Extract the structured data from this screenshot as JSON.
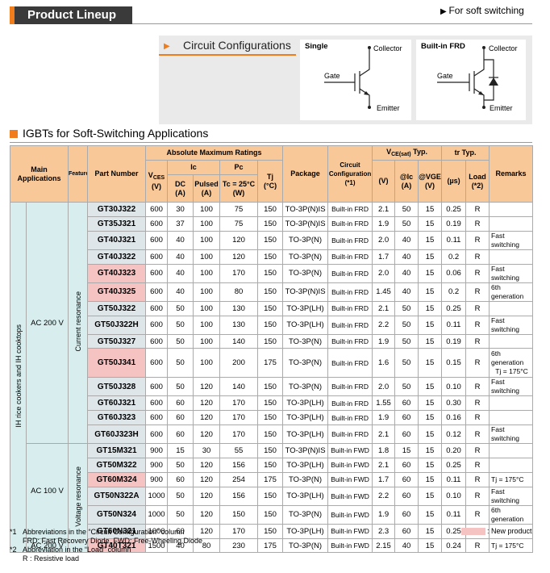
{
  "header": {
    "title": "Product Lineup",
    "note": "For soft switching"
  },
  "circuit": {
    "title": "Circuit Configurations",
    "single": {
      "label": "Single",
      "collector": "Collector",
      "gate": "Gate",
      "emitter": "Emitter"
    },
    "frd": {
      "label": "Built-in FRD",
      "collector": "Collector",
      "gate": "Gate",
      "emitter": "Emitter"
    }
  },
  "section_title": "IGBTs for Soft-Switching Applications",
  "table": {
    "header": {
      "main_applications": "Main Applications",
      "features": "Features",
      "part_number": "Part Number",
      "absolute_max": "Absolute Maximum Ratings",
      "vces": "V",
      "vces_sub": "CES",
      "vces_unit": "(V)",
      "ic": "Ic",
      "pc": "Pc",
      "tj": "Tj",
      "tj_unit": "(°C)",
      "dc": "DC",
      "dc_unit": "(A)",
      "pulsed": "Pulsed",
      "pulsed_unit": "(A)",
      "tc": "Tc = 25°C",
      "tc_unit": "(W)",
      "package": "Package",
      "config": "Circuit Configuration",
      "config_note": "(*1)",
      "vce": "V",
      "vce_sub": "CE(sat)",
      "vce_typ": "Typ.",
      "vce_unit": "(V)",
      "at_ic": "@Ic",
      "at_ic_unit": "(A)",
      "at_vge": "@VGE",
      "at_vge_unit": "(V)",
      "tr": "tr Typ.",
      "tr_unit": "(µs)",
      "load": "Load",
      "load_note": "(*2)",
      "remarks": "Remarks"
    },
    "main_application": "IH rice cookers and IH cooktops",
    "rows": [
      {
        "supply": "AC 200 V",
        "feature": "Current resonance",
        "cells": [
          "GT30J322",
          "600",
          "30",
          "100",
          "75",
          "150",
          "TO-3P(N)IS",
          "Built-in FRD",
          "2.1",
          "50",
          "15",
          "0.25",
          "R"
        ]
      },
      {
        "cells": [
          "GT35J321",
          "600",
          "37",
          "100",
          "75",
          "150",
          "TO-3P(N)IS",
          "Built-in FRD",
          "1.9",
          "50",
          "15",
          "0.19",
          "R"
        ]
      },
      {
        "cells": [
          "GT40J321",
          "600",
          "40",
          "100",
          "120",
          "150",
          "TO-3P(N)",
          "Built-in FRD",
          "2.0",
          "40",
          "15",
          "0.11",
          "R"
        ],
        "remarks": [
          "Fast switching"
        ]
      },
      {
        "cells": [
          "GT40J322",
          "600",
          "40",
          "100",
          "120",
          "150",
          "TO-3P(N)",
          "Built-in FRD",
          "1.7",
          "40",
          "15",
          "0.2",
          "R"
        ]
      },
      {
        "new": true,
        "cells": [
          "GT40J323",
          "600",
          "40",
          "100",
          "170",
          "150",
          "TO-3P(N)",
          "Built-in FRD",
          "2.0",
          "40",
          "15",
          "0.06",
          "R"
        ],
        "remarks": [
          "Fast switching"
        ]
      },
      {
        "new": true,
        "cells": [
          "GT40J325",
          "600",
          "40",
          "100",
          "80",
          "150",
          "TO-3P(N)IS",
          "Built-in FRD",
          "1.45",
          "40",
          "15",
          "0.2",
          "R"
        ],
        "remarks": [
          "6th generation"
        ]
      },
      {
        "cells": [
          "GT50J322",
          "600",
          "50",
          "100",
          "130",
          "150",
          "TO-3P(LH)",
          "Built-in FRD",
          "2.1",
          "50",
          "15",
          "0.25",
          "R"
        ]
      },
      {
        "cells": [
          "GT50J322H",
          "600",
          "50",
          "100",
          "130",
          "150",
          "TO-3P(LH)",
          "Built-in FRD",
          "2.2",
          "50",
          "15",
          "0.11",
          "R"
        ],
        "remarks": [
          "Fast switching"
        ]
      },
      {
        "cells": [
          "GT50J327",
          "600",
          "50",
          "100",
          "140",
          "150",
          "TO-3P(N)",
          "Built-in FRD",
          "1.9",
          "50",
          "15",
          "0.19",
          "R"
        ]
      },
      {
        "new": true,
        "cells": [
          "GT50J341",
          "600",
          "50",
          "100",
          "200",
          "175",
          "TO-3P(N)",
          "Built-in FRD",
          "1.6",
          "50",
          "15",
          "0.15",
          "R"
        ],
        "remarks": [
          "6th generation",
          "Tj = 175°C"
        ]
      },
      {
        "cells": [
          "GT50J328",
          "600",
          "50",
          "120",
          "140",
          "150",
          "TO-3P(N)",
          "Built-in FRD",
          "2.0",
          "50",
          "15",
          "0.10",
          "R"
        ],
        "remarks": [
          "Fast switching"
        ]
      },
      {
        "cells": [
          "GT60J321",
          "600",
          "60",
          "120",
          "170",
          "150",
          "TO-3P(LH)",
          "Built-in FRD",
          "1.55",
          "60",
          "15",
          "0.30",
          "R"
        ]
      },
      {
        "cells": [
          "GT60J323",
          "600",
          "60",
          "120",
          "170",
          "150",
          "TO-3P(LH)",
          "Built-in FRD",
          "1.9",
          "60",
          "15",
          "0.16",
          "R"
        ]
      },
      {
        "cells": [
          "GT60J323H",
          "600",
          "60",
          "120",
          "170",
          "150",
          "TO-3P(LH)",
          "Built-in FRD",
          "2.1",
          "60",
          "15",
          "0.12",
          "R"
        ],
        "remarks": [
          "Fast switching"
        ]
      },
      {
        "supply": "AC 100 V",
        "feature": "Voltage resonance",
        "cells": [
          "GT15M321",
          "900",
          "15",
          "30",
          "55",
          "150",
          "TO-3P(N)IS",
          "Built-in FWD",
          "1.8",
          "15",
          "15",
          "0.20",
          "R"
        ]
      },
      {
        "cells": [
          "GT50M322",
          "900",
          "50",
          "120",
          "156",
          "150",
          "TO-3P(LH)",
          "Built-in FWD",
          "2.1",
          "60",
          "15",
          "0.25",
          "R"
        ]
      },
      {
        "new": true,
        "cells": [
          "GT60M324",
          "900",
          "60",
          "120",
          "254",
          "175",
          "TO-3P(N)",
          "Built-in FWD",
          "1.7",
          "60",
          "15",
          "0.11",
          "R"
        ],
        "remarks": [
          "Tj = 175°C"
        ]
      },
      {
        "cells": [
          "GT50N322A",
          "1000",
          "50",
          "120",
          "156",
          "150",
          "TO-3P(LH)",
          "Built-in FWD",
          "2.2",
          "60",
          "15",
          "0.10",
          "R"
        ],
        "remarks": [
          "Fast switching"
        ]
      },
      {
        "cells": [
          "GT50N324",
          "1000",
          "50",
          "120",
          "150",
          "150",
          "TO-3P(N)",
          "Built-in FWD",
          "1.9",
          "60",
          "15",
          "0.11",
          "R"
        ],
        "remarks": [
          "6th generation"
        ]
      },
      {
        "cells": [
          "GT60N321",
          "1000",
          "60",
          "120",
          "170",
          "150",
          "TO-3P(LH)",
          "Built-in FWD",
          "2.3",
          "60",
          "15",
          "0.25",
          "R"
        ]
      },
      {
        "supply": "AC 200 V",
        "new": true,
        "cells": [
          "GT40T321",
          "1500",
          "40",
          "80",
          "230",
          "175",
          "TO-3P(N)",
          "Built-in FWD",
          "2.15",
          "40",
          "15",
          "0.24",
          "R"
        ],
        "remarks": [
          "Tj = 175°C"
        ]
      }
    ]
  },
  "footnotes": {
    "n1": "*1",
    "n1_text": "Abbreviations in the “Circuit Configuration” column",
    "n1_detail": "FRD: Fast Recovery Diode, FWD: Free-Wheeling Diode",
    "n2": "*2",
    "n2_text": "Abbreviation in the “Load” column",
    "n2_detail": "R : Resistive load",
    "legend": ": New product"
  }
}
